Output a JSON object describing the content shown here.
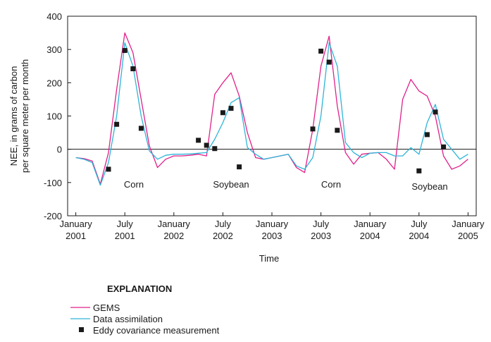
{
  "chart_data": {
    "type": "line",
    "x_label": "Time",
    "y_label": [
      "NEE, in grams of carbon",
      "per square meter per month"
    ],
    "xlim": [
      "2000-12",
      "2005-02"
    ],
    "xticks": [
      {
        "value": "2001-01",
        "label": "January 2001"
      },
      {
        "value": "2001-07",
        "label": "July 2001"
      },
      {
        "value": "2002-01",
        "label": "January 2002"
      },
      {
        "value": "2002-07",
        "label": "July 2002"
      },
      {
        "value": "2003-01",
        "label": "January 2003"
      },
      {
        "value": "2003-07",
        "label": "July 2003"
      },
      {
        "value": "2004-01",
        "label": "January 2004"
      },
      {
        "value": "2004-07",
        "label": "July 2004"
      },
      {
        "value": "2005-01",
        "label": "January 2005"
      }
    ],
    "ylim": [
      -200,
      400
    ],
    "yticks": [
      -200,
      -100,
      0,
      100,
      200,
      300,
      400
    ],
    "x": [
      "2001-01",
      "2001-02",
      "2001-03",
      "2001-04",
      "2001-05",
      "2001-06",
      "2001-07",
      "2001-08",
      "2001-09",
      "2001-10",
      "2001-11",
      "2001-12",
      "2002-01",
      "2002-02",
      "2002-03",
      "2002-04",
      "2002-05",
      "2002-06",
      "2002-07",
      "2002-08",
      "2002-09",
      "2002-10",
      "2002-11",
      "2002-12",
      "2003-01",
      "2003-02",
      "2003-03",
      "2003-04",
      "2003-05",
      "2003-06",
      "2003-07",
      "2003-08",
      "2003-09",
      "2003-10",
      "2003-11",
      "2003-12",
      "2004-01",
      "2004-02",
      "2004-03",
      "2004-04",
      "2004-05",
      "2004-06",
      "2004-07",
      "2004-08",
      "2004-09",
      "2004-10",
      "2004-11",
      "2004-12",
      "2005-01"
    ],
    "series": [
      {
        "name": "GEMS",
        "color": "#e0218a",
        "values": [
          -25,
          -28,
          -35,
          -105,
          -10,
          180,
          350,
          290,
          150,
          10,
          -55,
          -30,
          -20,
          -20,
          -18,
          -15,
          -20,
          165,
          200,
          230,
          160,
          50,
          -25,
          -30,
          -25,
          -20,
          -15,
          -55,
          -70,
          60,
          250,
          340,
          130,
          -10,
          -45,
          -15,
          -12,
          -10,
          -30,
          -60,
          150,
          210,
          175,
          160,
          100,
          -20,
          -60,
          -50,
          -30
        ]
      },
      {
        "name": "Data assimilation",
        "color": "#2cb5d8",
        "values": [
          -25,
          -30,
          -40,
          -108,
          -40,
          100,
          320,
          250,
          100,
          -5,
          -30,
          -18,
          -15,
          -15,
          -14,
          -12,
          -10,
          30,
          80,
          140,
          155,
          5,
          -15,
          -30,
          -25,
          -20,
          -15,
          -50,
          -60,
          -25,
          100,
          320,
          250,
          20,
          -10,
          -25,
          -12,
          -10,
          -10,
          -20,
          -20,
          5,
          -15,
          80,
          135,
          30,
          0,
          -30,
          -15
        ]
      },
      {
        "name": "Eddy covariance measurement",
        "color": "#1a1a1a",
        "marker": "square",
        "x": [
          "2001-05",
          "2001-06",
          "2001-07",
          "2001-08",
          "2001-09",
          "2002-04",
          "2002-05",
          "2002-06",
          "2002-07",
          "2002-08",
          "2002-09",
          "2003-06",
          "2003-07",
          "2003-08",
          "2003-09",
          "2004-07",
          "2004-08",
          "2004-09",
          "2004-10"
        ],
        "values": [
          -60,
          75,
          297,
          242,
          63,
          27,
          12,
          2,
          110,
          123,
          -53,
          61,
          295,
          262,
          57,
          -65,
          44,
          112,
          7
        ]
      }
    ],
    "annotations": [
      "Corn",
      "Soybean",
      "Corn",
      "Soybean"
    ],
    "legend_title": "EXPLANATION"
  }
}
